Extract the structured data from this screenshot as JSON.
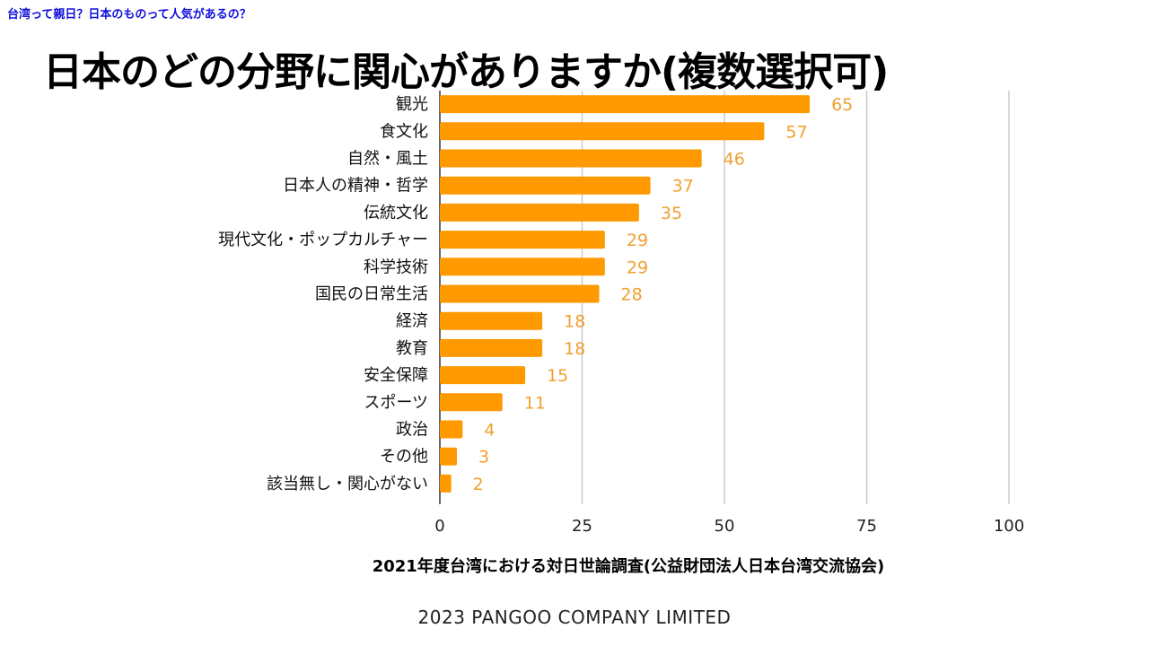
{
  "header": {
    "breadcrumb": "台湾って親日？日本のものって人気があるの？",
    "title": "日本のどの分野に関心がありますか(複数選択可)"
  },
  "chart_data": {
    "type": "bar",
    "orientation": "horizontal",
    "categories": [
      "観光",
      "食文化",
      "自然・風土",
      "日本人の精神・哲学",
      "伝統文化",
      "現代文化・ポップカルチャー",
      "科学技術",
      "国民の日常生活",
      "経済",
      "教育",
      "安全保障",
      "スポーツ",
      "政治",
      "その他",
      "該当無し・関心がない"
    ],
    "values": [
      65,
      57,
      46,
      37,
      35,
      29,
      29,
      28,
      18,
      18,
      15,
      11,
      4,
      3,
      2
    ],
    "x_ticks": [
      "0",
      "25",
      "50",
      "75",
      "100"
    ],
    "xlim": [
      0,
      100
    ],
    "grid": true,
    "colors": {
      "bar": "#ff9900",
      "data_label": "#f0a030",
      "grid": "#cccccc",
      "axis": "#333333"
    }
  },
  "source_text": "2021年度台湾における対日世論調査(公益財団法人日本台湾交流協会)",
  "footer_text": "2023 PANGOO COMPANY LIMITED"
}
